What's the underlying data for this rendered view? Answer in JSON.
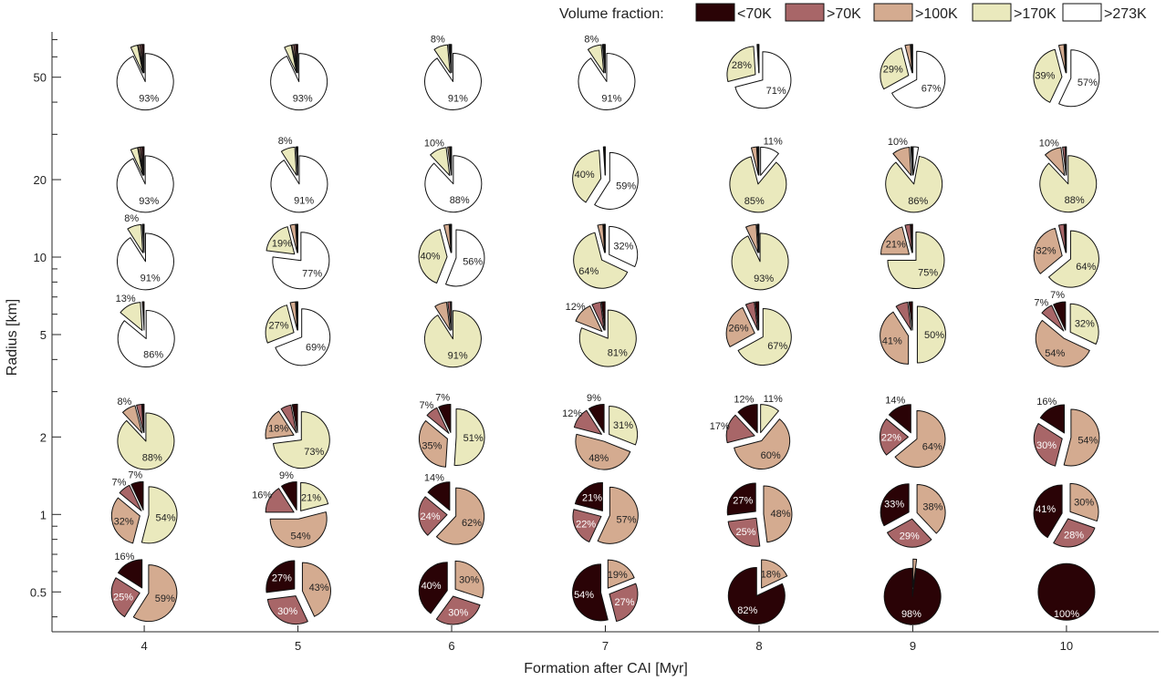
{
  "chart_data": {
    "type": "pie-grid",
    "title": "",
    "xlabel": "Formation after CAI [Myr]",
    "ylabel": "Radius [km]",
    "x_ticks": [
      "4",
      "5",
      "6",
      "7",
      "8",
      "9",
      "10"
    ],
    "y_ticks": [
      "0.5",
      "1",
      "2",
      "5",
      "10",
      "20",
      "50"
    ],
    "y_scale": "log",
    "ylim": [
      0.35,
      75
    ],
    "xlim": [
      3.4,
      10.6
    ],
    "legend": {
      "title": "Volume fraction:",
      "placement": "top-right",
      "entries": [
        {
          "label": "<70K",
          "color": "#2a0306"
        },
        {
          "label": ">70K",
          "color": "#a86668"
        },
        {
          "label": ">100K",
          "color": "#d4ab90"
        },
        {
          "label": ">170K",
          "color": "#eae9bd"
        },
        {
          "label": ">273K",
          "color": "#ffffff"
        }
      ]
    },
    "pies": [
      {
        "x": 4,
        "radius": 50,
        "fractions": [
          1,
          1,
          1,
          4,
          93
        ],
        "labels": [
          "",
          "",
          "",
          "",
          "93%"
        ]
      },
      {
        "x": 5,
        "radius": 50,
        "fractions": [
          1,
          1,
          1,
          4,
          93
        ],
        "labels": [
          "",
          "",
          "",
          "",
          "93%"
        ]
      },
      {
        "x": 6,
        "radius": 50,
        "fractions": [
          0.5,
          0.5,
          0.5,
          8,
          91
        ],
        "labels": [
          "",
          "",
          "",
          "8%",
          "91%"
        ]
      },
      {
        "x": 7,
        "radius": 50,
        "fractions": [
          0.5,
          0.5,
          0.5,
          8,
          91
        ],
        "labels": [
          "",
          "",
          "",
          "8%",
          "91%"
        ]
      },
      {
        "x": 8,
        "radius": 50,
        "fractions": [
          0.3,
          0.3,
          0.4,
          28,
          71
        ],
        "labels": [
          "",
          "",
          "",
          "28%",
          "71%"
        ]
      },
      {
        "x": 9,
        "radius": 50,
        "fractions": [
          0.5,
          0.5,
          3,
          29,
          67
        ],
        "labels": [
          "",
          "",
          "",
          "29%",
          "67%"
        ]
      },
      {
        "x": 10,
        "radius": 50,
        "fractions": [
          0.5,
          0.5,
          3,
          39,
          57
        ],
        "labels": [
          "",
          "",
          "",
          "39%",
          "57%"
        ]
      },
      {
        "x": 4,
        "radius": 20,
        "fractions": [
          1,
          1,
          1,
          4,
          93
        ],
        "labels": [
          "",
          "",
          "",
          "",
          "93%"
        ]
      },
      {
        "x": 5,
        "radius": 20,
        "fractions": [
          0.3,
          0.3,
          0.4,
          8,
          91
        ],
        "labels": [
          "",
          "",
          "",
          "8%",
          "91%"
        ]
      },
      {
        "x": 6,
        "radius": 20,
        "fractions": [
          0.5,
          0.5,
          1,
          10,
          88
        ],
        "labels": [
          "",
          "",
          "",
          "10%",
          "88%"
        ]
      },
      {
        "x": 7,
        "radius": 20,
        "fractions": [
          0.3,
          0.3,
          0.4,
          40,
          59
        ],
        "labels": [
          "",
          "",
          "",
          "40%",
          "59%"
        ]
      },
      {
        "x": 8,
        "radius": 20,
        "fractions": [
          0.5,
          0.5,
          3,
          85,
          11
        ],
        "labels": [
          "",
          "",
          "",
          "85%",
          "11%"
        ]
      },
      {
        "x": 9,
        "radius": 20,
        "fractions": [
          0.5,
          0.5,
          10,
          86,
          3
        ],
        "labels": [
          "",
          "",
          "10%",
          "86%",
          ""
        ]
      },
      {
        "x": 10,
        "radius": 20,
        "fractions": [
          0.5,
          1.5,
          10,
          88,
          0
        ],
        "labels": [
          "",
          "",
          "10%",
          "88%",
          ""
        ]
      },
      {
        "x": 4,
        "radius": 10,
        "fractions": [
          0.5,
          0.5,
          0,
          8,
          91
        ],
        "labels": [
          "",
          "",
          "",
          "8%",
          "91%"
        ]
      },
      {
        "x": 5,
        "radius": 10,
        "fractions": [
          0.5,
          0.5,
          3,
          19,
          77
        ],
        "labels": [
          "",
          "",
          "",
          "19%",
          "77%"
        ]
      },
      {
        "x": 6,
        "radius": 10,
        "fractions": [
          0.5,
          0.5,
          3,
          40,
          56
        ],
        "labels": [
          "",
          "",
          "",
          "40%",
          "56%"
        ]
      },
      {
        "x": 7,
        "radius": 10,
        "fractions": [
          0.5,
          0.5,
          3,
          64,
          32
        ],
        "labels": [
          "",
          "",
          "",
          "64%",
          "32%"
        ]
      },
      {
        "x": 8,
        "radius": 10,
        "fractions": [
          0.5,
          0.5,
          6,
          93,
          0
        ],
        "labels": [
          "",
          "",
          "",
          "93%",
          ""
        ]
      },
      {
        "x": 9,
        "radius": 10,
        "fractions": [
          1,
          3,
          21,
          75,
          0
        ],
        "labels": [
          "",
          "",
          "21%",
          "75%",
          ""
        ]
      },
      {
        "x": 10,
        "radius": 10,
        "fractions": [
          1,
          3,
          32,
          64,
          0
        ],
        "labels": [
          "",
          "",
          "32%",
          "64%",
          ""
        ]
      },
      {
        "x": 4,
        "radius": 5,
        "fractions": [
          1,
          0,
          0,
          13,
          86
        ],
        "labels": [
          "",
          "",
          "",
          "13%",
          "86%"
        ]
      },
      {
        "x": 5,
        "radius": 5,
        "fractions": [
          0.5,
          0.5,
          3,
          27,
          69
        ],
        "labels": [
          "",
          "",
          "",
          "27%",
          "69%"
        ]
      },
      {
        "x": 6,
        "radius": 5,
        "fractions": [
          0.5,
          1.5,
          7,
          91,
          0
        ],
        "labels": [
          "",
          "",
          "",
          "91%",
          ""
        ]
      },
      {
        "x": 7,
        "radius": 5,
        "fractions": [
          2,
          5,
          12,
          81,
          0
        ],
        "labels": [
          "",
          "",
          "12%",
          "81%",
          ""
        ]
      },
      {
        "x": 8,
        "radius": 5,
        "fractions": [
          2,
          5,
          26,
          67,
          0
        ],
        "labels": [
          "",
          "",
          "26%",
          "67%",
          ""
        ]
      },
      {
        "x": 9,
        "radius": 5,
        "fractions": [
          2,
          7,
          41,
          50,
          0
        ],
        "labels": [
          "",
          "",
          "41%",
          "50%",
          ""
        ]
      },
      {
        "x": 10,
        "radius": 5,
        "fractions": [
          7,
          7,
          54,
          32,
          0
        ],
        "labels": [
          "7%",
          "7%",
          "54%",
          "32%",
          ""
        ]
      },
      {
        "x": 4,
        "radius": 2,
        "fractions": [
          1,
          3,
          8,
          88,
          0
        ],
        "labels": [
          "",
          "",
          "8%",
          "88%",
          ""
        ]
      },
      {
        "x": 5,
        "radius": 2,
        "fractions": [
          3,
          6,
          18,
          73,
          0
        ],
        "labels": [
          "",
          "",
          "18%",
          "73%",
          ""
        ]
      },
      {
        "x": 6,
        "radius": 2,
        "fractions": [
          7,
          7,
          35,
          51,
          0
        ],
        "labels": [
          "7%",
          "7%",
          "35%",
          "51%",
          ""
        ]
      },
      {
        "x": 7,
        "radius": 2,
        "fractions": [
          9,
          12,
          48,
          31,
          0
        ],
        "labels": [
          "9%",
          "12%",
          "48%",
          "31%",
          ""
        ]
      },
      {
        "x": 8,
        "radius": 2,
        "fractions": [
          12,
          17,
          60,
          11,
          0
        ],
        "labels": [
          "12%",
          "17%",
          "60%",
          "11%",
          ""
        ]
      },
      {
        "x": 9,
        "radius": 2,
        "fractions": [
          14,
          22,
          64,
          0,
          0
        ],
        "labels": [
          "14%",
          "22%",
          "64%",
          "",
          ""
        ]
      },
      {
        "x": 10,
        "radius": 2,
        "fractions": [
          16,
          30,
          54,
          0,
          0
        ],
        "labels": [
          "16%",
          "30%",
          "54%",
          "",
          ""
        ]
      },
      {
        "x": 4,
        "radius": 1,
        "fractions": [
          7,
          7,
          32,
          54,
          0
        ],
        "labels": [
          "7%",
          "7%",
          "32%",
          "54%",
          ""
        ]
      },
      {
        "x": 5,
        "radius": 1,
        "fractions": [
          9,
          16,
          54,
          21,
          0
        ],
        "labels": [
          "9%",
          "16%",
          "54%",
          "21%",
          ""
        ]
      },
      {
        "x": 6,
        "radius": 1,
        "fractions": [
          14,
          24,
          62,
          0,
          0
        ],
        "labels": [
          "14%",
          "24%",
          "62%",
          "",
          ""
        ]
      },
      {
        "x": 7,
        "radius": 1,
        "fractions": [
          21,
          22,
          57,
          0,
          0
        ],
        "labels": [
          "21%",
          "22%",
          "57%",
          "",
          ""
        ]
      },
      {
        "x": 8,
        "radius": 1,
        "fractions": [
          27,
          25,
          48,
          0,
          0
        ],
        "labels": [
          "27%",
          "25%",
          "48%",
          "",
          ""
        ]
      },
      {
        "x": 9,
        "radius": 1,
        "fractions": [
          33,
          29,
          38,
          0,
          0
        ],
        "labels": [
          "33%",
          "29%",
          "38%",
          "",
          ""
        ]
      },
      {
        "x": 10,
        "radius": 1,
        "fractions": [
          41,
          28,
          30,
          0,
          0
        ],
        "labels": [
          "41%",
          "28%",
          "30%",
          "",
          ""
        ]
      },
      {
        "x": 4,
        "radius": 0.5,
        "fractions": [
          16,
          25,
          59,
          0,
          0
        ],
        "labels": [
          "16%",
          "25%",
          "59%",
          "",
          ""
        ]
      },
      {
        "x": 5,
        "radius": 0.5,
        "fractions": [
          27,
          30,
          43,
          0,
          0
        ],
        "labels": [
          "27%",
          "30%",
          "43%",
          "",
          ""
        ]
      },
      {
        "x": 6,
        "radius": 0.5,
        "fractions": [
          40,
          30,
          30,
          0,
          0
        ],
        "labels": [
          "40%",
          "30%",
          "30%",
          "",
          ""
        ]
      },
      {
        "x": 7,
        "radius": 0.5,
        "fractions": [
          54,
          27,
          19,
          0,
          0
        ],
        "labels": [
          "54%",
          "27%",
          "19%",
          "",
          ""
        ]
      },
      {
        "x": 8,
        "radius": 0.5,
        "fractions": [
          82,
          0,
          18,
          0,
          0
        ],
        "labels": [
          "82%",
          "",
          "18%",
          "",
          ""
        ]
      },
      {
        "x": 9,
        "radius": 0.5,
        "fractions": [
          98,
          0,
          2,
          0,
          0
        ],
        "labels": [
          "98%",
          "",
          "",
          "",
          ""
        ]
      },
      {
        "x": 10,
        "radius": 0.5,
        "fractions": [
          100,
          0,
          0,
          0,
          0
        ],
        "labels": [
          "100%",
          "",
          "",
          "",
          ""
        ]
      }
    ]
  }
}
